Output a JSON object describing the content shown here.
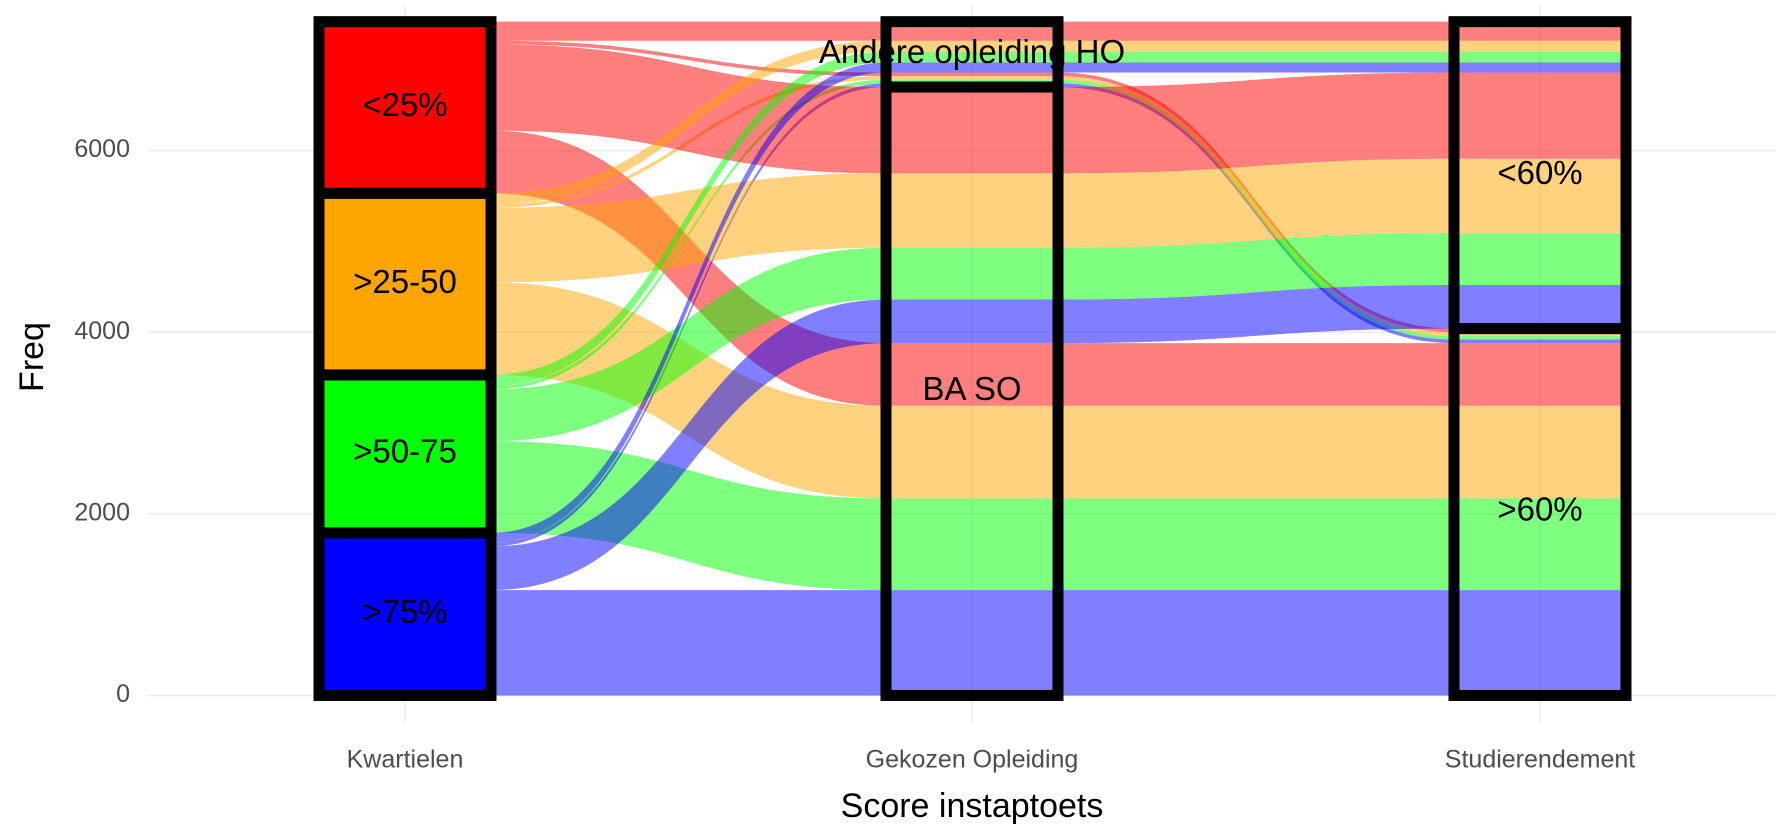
{
  "chart_data": {
    "type": "alluvial",
    "xlabel": "Score instaptoets",
    "ylabel": "Freq",
    "ylim": [
      -300,
      7600
    ],
    "yticks": [
      0,
      2000,
      4000,
      6000
    ],
    "grid": true,
    "axes": [
      {
        "name": "Kwartielen",
        "strata": [
          {
            "label": ">75%",
            "color": "#0000ff"
          },
          {
            "label": ">50-75",
            "color": "#00ff00"
          },
          {
            "label": ">25-50",
            "color": "#ffa500"
          },
          {
            "label": "<25%",
            "color": "#ff0000"
          }
        ]
      },
      {
        "name": "Gekozen Opleiding",
        "strata": [
          {
            "label": "BA SO"
          },
          {
            "label": "Andere opleiding HO"
          }
        ]
      },
      {
        "name": "Studierendement",
        "strata": [
          {
            "label": ">60%"
          },
          {
            "label": "<60%"
          }
        ]
      }
    ],
    "flows": [
      {
        "strata": [
          ">75%",
          "BA SO",
          ">60%"
        ],
        "value": 1160
      },
      {
        "strata": [
          ">50-75",
          "BA SO",
          ">60%"
        ],
        "value": 1010
      },
      {
        "strata": [
          ">25-50",
          "BA SO",
          ">60%"
        ],
        "value": 1020
      },
      {
        "strata": [
          "<25%",
          "BA SO",
          ">60%"
        ],
        "value": 690
      },
      {
        "strata": [
          ">75%",
          "Andere opleiding HO",
          ">60%"
        ],
        "value": 40
      },
      {
        "strata": [
          ">50-75",
          "Andere opleiding HO",
          ">60%"
        ],
        "value": 40
      },
      {
        "strata": [
          ">25-50",
          "Andere opleiding HO",
          ">60%"
        ],
        "value": 40
      },
      {
        "strata": [
          "<25%",
          "Andere opleiding HO",
          ">60%"
        ],
        "value": 40
      },
      {
        "strata": [
          ">75%",
          "BA SO",
          "<60%"
        ],
        "value": 480
      },
      {
        "strata": [
          ">50-75",
          "BA SO",
          "<60%"
        ],
        "value": 570
      },
      {
        "strata": [
          ">25-50",
          "BA SO",
          "<60%"
        ],
        "value": 820
      },
      {
        "strata": [
          "<25%",
          "BA SO",
          "<60%"
        ],
        "value": 950
      },
      {
        "strata": [
          ">75%",
          "Andere opleiding HO",
          "<60%"
        ],
        "value": 110
      },
      {
        "strata": [
          ">50-75",
          "Andere opleiding HO",
          "<60%"
        ],
        "value": 120
      },
      {
        "strata": [
          ">25-50",
          "Andere opleiding HO",
          "<60%"
        ],
        "value": 120
      },
      {
        "strata": [
          "<25%",
          "Andere opleiding HO",
          "<60%"
        ],
        "value": 210
      }
    ]
  }
}
